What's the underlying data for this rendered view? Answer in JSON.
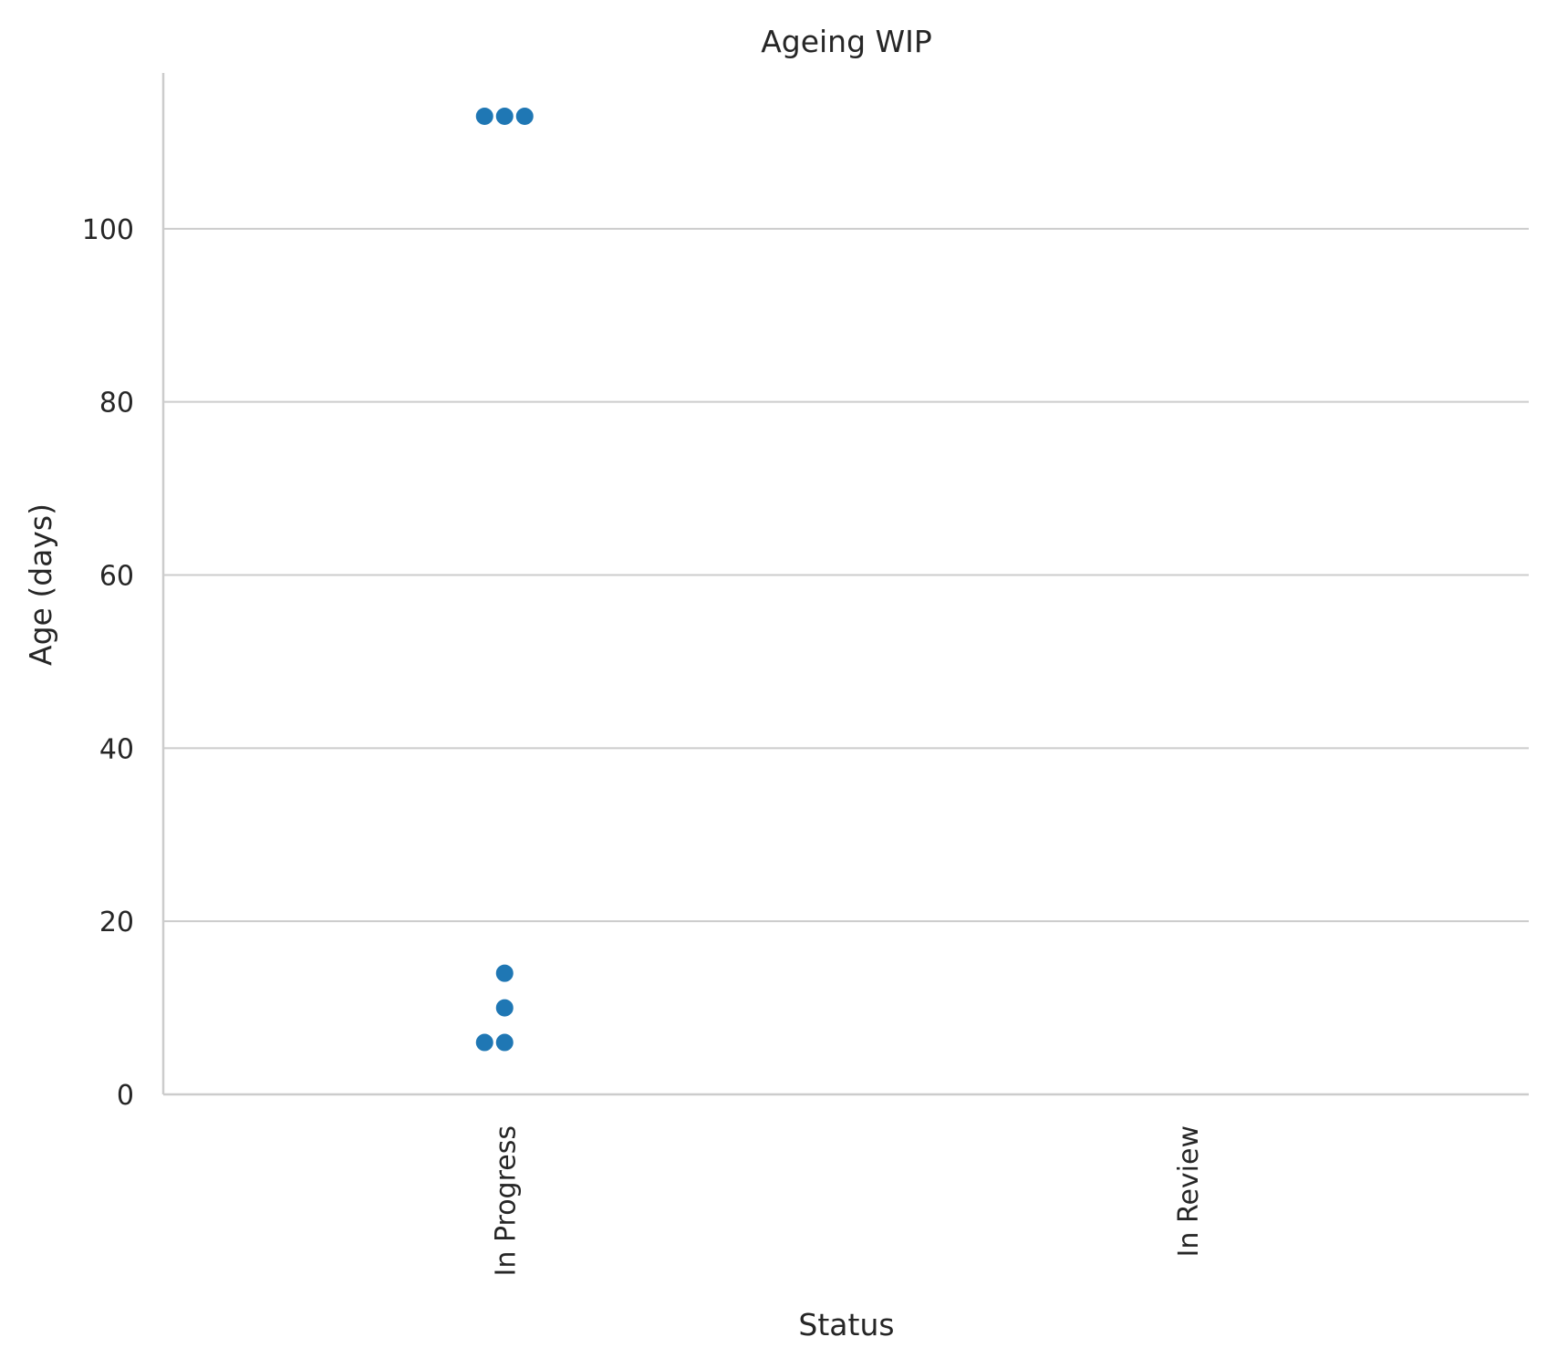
{
  "chart_data": {
    "type": "scatter",
    "title": "Ageing WIP",
    "xlabel": "Status",
    "ylabel": "Age (days)",
    "categories": [
      "In Progress",
      "In Review"
    ],
    "ylim": [
      0,
      118
    ],
    "yticks": [
      0,
      20,
      40,
      60,
      80,
      100
    ],
    "grid": "horizontal",
    "marker_color": "#1f77b4",
    "axis_color": "#cccccc",
    "points": [
      {
        "category": "In Progress",
        "y": 113
      },
      {
        "category": "In Progress",
        "y": 113
      },
      {
        "category": "In Progress",
        "y": 113
      },
      {
        "category": "In Progress",
        "y": 14
      },
      {
        "category": "In Progress",
        "y": 10
      },
      {
        "category": "In Progress",
        "y": 6
      },
      {
        "category": "In Progress",
        "y": 6
      }
    ]
  }
}
